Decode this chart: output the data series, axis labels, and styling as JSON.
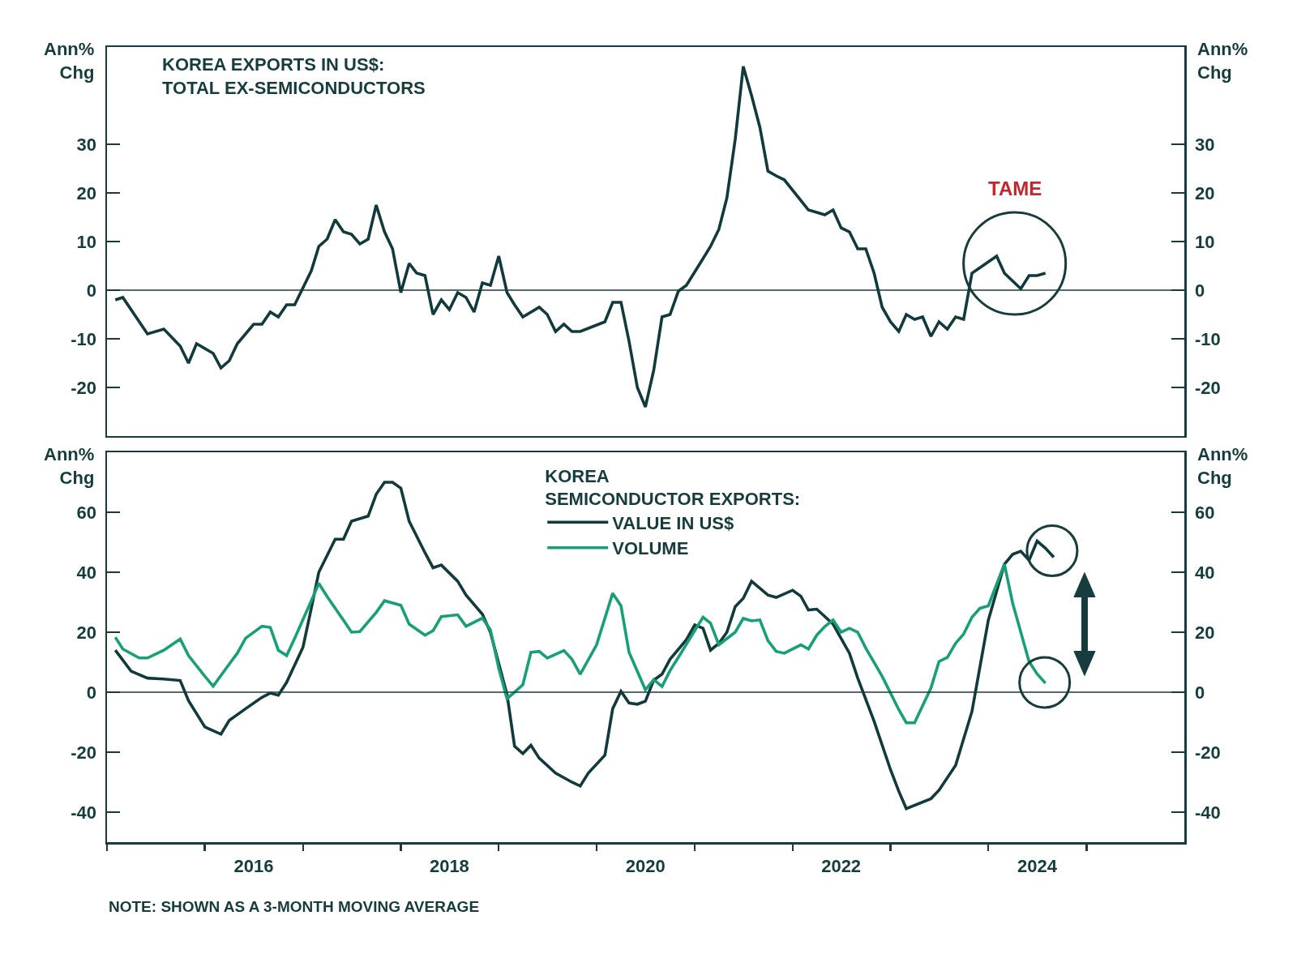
{
  "chart_data": [
    {
      "type": "line",
      "title": "KOREA EXPORTS IN US$:\nTOTAL EX-SEMICONDUCTORS",
      "ylabel": "Ann%\nChg",
      "y2label": "Ann%\nChg",
      "x": [
        "2015-02",
        "2015-03",
        "2015-06",
        "2015-08",
        "2015-10",
        "2015-11",
        "2015-12",
        "2016-02",
        "2016-03",
        "2016-04",
        "2016-05",
        "2016-07",
        "2016-08",
        "2016-09",
        "2016-10",
        "2016-11",
        "2016-12",
        "2017-02",
        "2017-03",
        "2017-04",
        "2017-05",
        "2017-06",
        "2017-07",
        "2017-08",
        "2017-09",
        "2017-10",
        "2017-11",
        "2017-12",
        "2018-01",
        "2018-02",
        "2018-03",
        "2018-04",
        "2018-05",
        "2018-06",
        "2018-07",
        "2018-08",
        "2018-09",
        "2018-10",
        "2018-11",
        "2018-12",
        "2019-01",
        "2019-02",
        "2019-03",
        "2019-04",
        "2019-06",
        "2019-07",
        "2019-08",
        "2019-09",
        "2019-10",
        "2019-11",
        "2020-02",
        "2020-03",
        "2020-04",
        "2020-05",
        "2020-06",
        "2020-07",
        "2020-08",
        "2020-09",
        "2020-10",
        "2020-11",
        "2020-12",
        "2021-02",
        "2021-03",
        "2021-04",
        "2021-05",
        "2021-06",
        "2021-07",
        "2021-08",
        "2021-09",
        "2021-10",
        "2021-11",
        "2021-12",
        "2022-03",
        "2022-04",
        "2022-05",
        "2022-06",
        "2022-07",
        "2022-08",
        "2022-09",
        "2022-10",
        "2022-11",
        "2022-12",
        "2023-01",
        "2023-02",
        "2023-03",
        "2023-04",
        "2023-05",
        "2023-06",
        "2023-07",
        "2023-08",
        "2023-09",
        "2023-10",
        "2023-11",
        "2024-02",
        "2024-03",
        "2024-05",
        "2024-06",
        "2024-07",
        "2024-08"
      ],
      "series": [
        {
          "color": "#123a3c",
          "values": [
            -2,
            -1.5,
            -9,
            -8,
            -11.5,
            -15,
            -11,
            -13,
            -16,
            -14.5,
            -11,
            -7,
            -7,
            -4.5,
            -5.5,
            -3,
            -3,
            4,
            9,
            10.5,
            14.5,
            12,
            11.5,
            9.5,
            10.5,
            17.5,
            12,
            8.5,
            -0.5,
            5.5,
            3.5,
            3,
            -5,
            -2,
            -4,
            -0.5,
            -1.5,
            -4.5,
            1.5,
            1,
            7,
            -0.5,
            -3,
            -5.5,
            -3.5,
            -5,
            -8.5,
            -7,
            -8.5,
            -8.5,
            -6.5,
            -2.5,
            -2.5,
            -10.5,
            -20,
            -24,
            -16.5,
            -5.5,
            -5,
            -0.2,
            1,
            6.5,
            9,
            12.5,
            19,
            31,
            46,
            40,
            33.5,
            24.5,
            23.5,
            22.7,
            16.5,
            16,
            15.5,
            16.5,
            12.8,
            12,
            8.5,
            8.5,
            3.5,
            -3.5,
            -6.5,
            -8.5,
            -5,
            -6,
            -5.5,
            -9.5,
            -6.5,
            -8,
            -5.5,
            -6,
            3.5,
            7,
            3.5,
            0.3,
            3,
            3,
            3.5
          ]
        }
      ],
      "xlim": [
        "2015-01",
        "2026-01"
      ],
      "ylim": [
        -30,
        50
      ],
      "yticks": [
        -20,
        -10,
        0,
        10,
        20,
        30
      ],
      "y2lim": [
        -30,
        50
      ],
      "y2ticks": [
        -20,
        -10,
        0,
        10,
        20,
        30
      ],
      "tick_labels": "y",
      "ref_lines": [
        {
          "axis": "y",
          "value": 0
        }
      ],
      "annotations": [
        "TAME"
      ]
    },
    {
      "type": "line",
      "legend_title": "KOREA\nSEMICONDUCTOR EXPORTS:",
      "ylabel": "Ann%\nChg",
      "y2label": "Ann%\nChg",
      "legend": "top",
      "series": [
        {
          "name": "VALUE IN US$",
          "color": "#123a3c",
          "x": [
            "2015-02",
            "2015-04",
            "2015-06",
            "2015-08",
            "2015-10",
            "2015-11",
            "2016-01",
            "2016-03",
            "2016-04",
            "2016-06",
            "2016-08",
            "2016-09",
            "2016-10",
            "2016-11",
            "2017-01",
            "2017-02",
            "2017-03",
            "2017-05",
            "2017-06",
            "2017-07",
            "2017-09",
            "2017-10",
            "2017-11",
            "2017-12",
            "2018-01",
            "2018-02",
            "2018-04",
            "2018-05",
            "2018-06",
            "2018-08",
            "2018-09",
            "2018-11",
            "2018-12",
            "2019-02",
            "2019-03",
            "2019-04",
            "2019-05",
            "2019-06",
            "2019-08",
            "2019-10",
            "2019-11",
            "2019-12",
            "2020-02",
            "2020-03",
            "2020-04",
            "2020-05",
            "2020-06",
            "2020-07",
            "2020-08",
            "2020-09",
            "2020-10",
            "2020-12",
            "2021-01",
            "2021-02",
            "2021-03",
            "2021-04",
            "2021-05",
            "2021-06",
            "2021-07",
            "2021-08",
            "2021-10",
            "2021-11",
            "2022-01",
            "2022-02",
            "2022-03",
            "2022-04",
            "2022-06",
            "2022-08",
            "2022-09",
            "2022-11",
            "2023-01",
            "2023-02",
            "2023-03",
            "2023-06",
            "2023-07",
            "2023-09",
            "2023-11",
            "2024-01",
            "2024-03",
            "2024-04",
            "2024-05",
            "2024-06",
            "2024-07",
            "2024-08",
            "2024-09"
          ],
          "values": [
            14,
            7,
            4.7,
            4.4,
            3.9,
            -2.8,
            -11.6,
            -14,
            -9.4,
            -5.5,
            -1.7,
            -0.3,
            -1,
            3.3,
            15,
            28,
            40,
            51,
            51,
            57,
            58.7,
            66,
            70,
            70,
            68,
            57,
            46.5,
            41.5,
            42.4,
            37,
            32.4,
            26,
            20,
            -0.8,
            -18,
            -20.5,
            -17.7,
            -22,
            -27,
            -30,
            -31.3,
            -27,
            -21,
            -5.5,
            0.3,
            -3.6,
            -4,
            -3,
            4,
            6,
            11,
            17.5,
            22.4,
            21.3,
            14,
            16.3,
            20,
            28.5,
            31.3,
            37,
            32.4,
            31.6,
            34,
            32,
            27.4,
            27.7,
            22.7,
            13,
            4.7,
            -9.7,
            -25.8,
            -33,
            -38.8,
            -35.5,
            -32.7,
            -24.4,
            -6.4,
            24,
            42.7,
            46,
            47,
            44,
            50.4,
            48,
            45
          ]
        },
        {
          "name": "VOLUME",
          "color": "#17a078",
          "x": [
            "2015-02",
            "2015-03",
            "2015-05",
            "2015-06",
            "2015-08",
            "2015-10",
            "2015-11",
            "2016-01",
            "2016-02",
            "2016-04",
            "2016-05",
            "2016-06",
            "2016-08",
            "2016-09",
            "2016-10",
            "2016-11",
            "2016-12",
            "2017-02",
            "2017-03",
            "2017-04",
            "2017-06",
            "2017-07",
            "2017-08",
            "2017-10",
            "2017-11",
            "2018-01",
            "2018-02",
            "2018-04",
            "2018-05",
            "2018-06",
            "2018-08",
            "2018-09",
            "2018-11",
            "2018-12",
            "2019-01",
            "2019-02",
            "2019-04",
            "2019-05",
            "2019-06",
            "2019-07",
            "2019-09",
            "2019-10",
            "2019-11",
            "2020-01",
            "2020-03",
            "2020-04",
            "2020-05",
            "2020-07",
            "2020-08",
            "2020-09",
            "2020-10",
            "2020-11",
            "2021-01",
            "2021-02",
            "2021-03",
            "2021-04",
            "2021-06",
            "2021-07",
            "2021-08",
            "2021-09",
            "2021-10",
            "2021-11",
            "2021-12",
            "2022-02",
            "2022-03",
            "2022-04",
            "2022-05",
            "2022-06",
            "2022-07",
            "2022-08",
            "2022-09",
            "2022-10",
            "2022-12",
            "2023-02",
            "2023-03",
            "2023-04",
            "2023-06",
            "2023-07",
            "2023-08",
            "2023-09",
            "2023-10",
            "2023-11",
            "2023-12",
            "2024-01",
            "2024-03",
            "2024-04",
            "2024-06",
            "2024-07",
            "2024-08"
          ],
          "values": [
            18.3,
            14.4,
            11.4,
            11.4,
            14,
            17.7,
            12.2,
            5.3,
            2,
            9.4,
            13,
            18,
            22,
            21.6,
            14,
            12.2,
            18,
            30.5,
            36.3,
            31.9,
            24,
            20,
            20.2,
            26.6,
            30.5,
            29,
            22.7,
            19,
            20.5,
            25.2,
            25.8,
            22,
            24.7,
            20.8,
            8,
            -2.2,
            2.5,
            13.3,
            13.6,
            11.4,
            13.9,
            11,
            6,
            15.8,
            33,
            28.8,
            13.3,
            0.8,
            4.2,
            1.9,
            7.2,
            11.6,
            20.5,
            25,
            23,
            15.8,
            20,
            24.6,
            23.8,
            24.1,
            17.2,
            13.6,
            13,
            15.8,
            14.4,
            19,
            21.9,
            24.1,
            20,
            21.3,
            20,
            14.7,
            5.3,
            -5.8,
            -10.2,
            -10.2,
            1.4,
            10.2,
            11.6,
            16.3,
            19.4,
            25,
            28,
            28.8,
            42.7,
            29.6,
            10.2,
            6.1,
            3
          ]
        }
      ],
      "xlim": [
        "2015-01",
        "2026-01"
      ],
      "xticks": [
        {
          "value": "2015-01",
          "label": null
        },
        {
          "value": "2016-01",
          "label": null
        },
        {
          "value": "2016-07",
          "label": "2016"
        },
        {
          "value": "2017-01",
          "label": null
        },
        {
          "value": "2018-01",
          "label": null
        },
        {
          "value": "2018-07",
          "label": "2018"
        },
        {
          "value": "2019-01",
          "label": null
        },
        {
          "value": "2020-01",
          "label": null
        },
        {
          "value": "2020-07",
          "label": "2020"
        },
        {
          "value": "2021-01",
          "label": null
        },
        {
          "value": "2022-01",
          "label": null
        },
        {
          "value": "2022-07",
          "label": "2022"
        },
        {
          "value": "2023-01",
          "label": null
        },
        {
          "value": "2024-01",
          "label": null
        },
        {
          "value": "2024-07",
          "label": "2024"
        },
        {
          "value": "2025-01",
          "label": null
        }
      ],
      "ylim": [
        -50,
        80
      ],
      "yticks": [
        -40,
        -20,
        0,
        20,
        40,
        60
      ],
      "y2lim": [
        -50,
        80
      ],
      "y2ticks": [
        -40,
        -20,
        0,
        20,
        40,
        60
      ],
      "ref_lines": [
        {
          "axis": "y",
          "value": 0
        }
      ],
      "annotations": [
        "NOTE: SHOWN AS A 3-MONTH MOVING AVERAGE"
      ]
    }
  ]
}
